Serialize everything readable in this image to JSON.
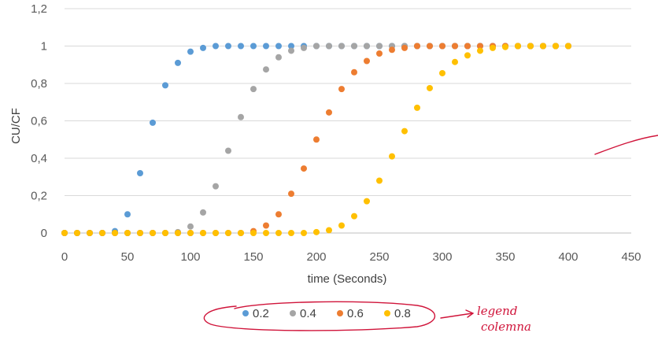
{
  "chart_data": {
    "type": "scatter",
    "xlabel": "time (Seconds)",
    "ylabel": "CU/CF",
    "xlim": [
      0,
      450
    ],
    "ylim": [
      0,
      1.2
    ],
    "x_ticks": [
      "0",
      "50",
      "100",
      "150",
      "200",
      "250",
      "300",
      "350",
      "400",
      "450"
    ],
    "y_ticks": [
      "0",
      "0,2",
      "0,4",
      "0,6",
      "0,8",
      "1",
      "1,2"
    ],
    "grid": "horizontal",
    "legend_position": "bottom",
    "series": [
      {
        "name": "0.2",
        "color": "#5b9bd5",
        "x": [
          0,
          10,
          20,
          30,
          40,
          50,
          60,
          70,
          80,
          90,
          100,
          110,
          120,
          130,
          140,
          150,
          160,
          170,
          180,
          190,
          200,
          210,
          220,
          230,
          240,
          250,
          260,
          270,
          280,
          290,
          300,
          310,
          320,
          330,
          340,
          350,
          360,
          370,
          380,
          390,
          400
        ],
        "y": [
          0,
          0,
          0,
          0,
          0.01,
          0.1,
          0.32,
          0.59,
          0.79,
          0.91,
          0.97,
          0.99,
          1,
          1,
          1,
          1,
          1,
          1,
          1,
          1,
          1,
          1,
          1,
          1,
          1,
          1,
          1,
          1,
          1,
          1,
          1,
          1,
          1,
          1,
          1,
          1,
          1,
          1,
          1,
          1,
          1
        ]
      },
      {
        "name": "0.4",
        "color": "#a5a5a5",
        "x": [
          0,
          10,
          20,
          30,
          40,
          50,
          60,
          70,
          80,
          90,
          100,
          110,
          120,
          130,
          140,
          150,
          160,
          170,
          180,
          190,
          200,
          210,
          220,
          230,
          240,
          250,
          260,
          270,
          280,
          290,
          300,
          310,
          320,
          330,
          340,
          350,
          360,
          370,
          380,
          390,
          400
        ],
        "y": [
          0,
          0,
          0,
          0,
          0,
          0,
          0,
          0,
          0,
          0.005,
          0.035,
          0.11,
          0.25,
          0.44,
          0.62,
          0.77,
          0.875,
          0.94,
          0.975,
          0.99,
          1,
          1,
          1,
          1,
          1,
          1,
          1,
          1,
          1,
          1,
          1,
          1,
          1,
          1,
          1,
          1,
          1,
          1,
          1,
          1,
          1
        ]
      },
      {
        "name": "0.6",
        "color": "#ed7d31",
        "x": [
          0,
          10,
          20,
          30,
          40,
          50,
          60,
          70,
          80,
          90,
          100,
          110,
          120,
          130,
          140,
          150,
          160,
          170,
          180,
          190,
          200,
          210,
          220,
          230,
          240,
          250,
          260,
          270,
          280,
          290,
          300,
          310,
          320,
          330,
          340,
          350,
          360,
          370,
          380,
          390,
          400
        ],
        "y": [
          0,
          0,
          0,
          0,
          0,
          0,
          0,
          0,
          0,
          0,
          0,
          0,
          0,
          0,
          0,
          0.01,
          0.04,
          0.1,
          0.21,
          0.345,
          0.5,
          0.645,
          0.77,
          0.86,
          0.92,
          0.96,
          0.98,
          0.99,
          1,
          1,
          1,
          1,
          1,
          1,
          1,
          1,
          1,
          1,
          1,
          1,
          1
        ]
      },
      {
        "name": "0.8",
        "color": "#ffc000",
        "x": [
          0,
          10,
          20,
          30,
          40,
          50,
          60,
          70,
          80,
          90,
          100,
          110,
          120,
          130,
          140,
          150,
          160,
          170,
          180,
          190,
          200,
          210,
          220,
          230,
          240,
          250,
          260,
          270,
          280,
          290,
          300,
          310,
          320,
          330,
          340,
          350,
          360,
          370,
          380,
          390,
          400
        ],
        "y": [
          0,
          0,
          0,
          0,
          0,
          0,
          0,
          0,
          0,
          0,
          0,
          0,
          0,
          0,
          0,
          0,
          0,
          0,
          0,
          0,
          0.005,
          0.015,
          0.04,
          0.09,
          0.17,
          0.28,
          0.41,
          0.545,
          0.67,
          0.775,
          0.855,
          0.915,
          0.95,
          0.975,
          0.99,
          0.995,
          1,
          1,
          1,
          1,
          1
        ]
      }
    ],
    "annotations": [
      "legend",
      "colemna"
    ]
  }
}
